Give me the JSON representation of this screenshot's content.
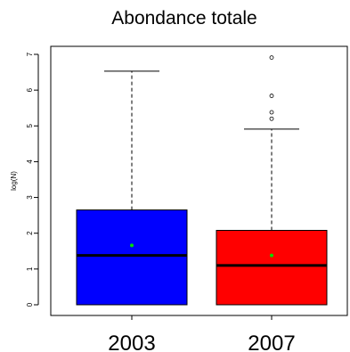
{
  "chart_data": {
    "type": "boxplot",
    "title": "Abondance totale",
    "xlabel": "",
    "ylabel": "log(N)",
    "ylim": [
      0,
      7
    ],
    "yticks": [
      "0",
      "1",
      "2",
      "3",
      "4",
      "5",
      "6",
      "7"
    ],
    "categories": [
      "2003",
      "2007"
    ],
    "boxes": [
      {
        "category": "2003",
        "color": "#0000ff",
        "min": 0,
        "q1": 0,
        "median": 1.38,
        "q3": 2.65,
        "whisker_high": 6.53,
        "mean": 1.66,
        "outliers": []
      },
      {
        "category": "2007",
        "color": "#ff0000",
        "min": 0,
        "q1": 0,
        "median": 1.1,
        "q3": 2.08,
        "whisker_high": 4.91,
        "mean": 1.38,
        "outliers": [
          5.2,
          5.38,
          5.84,
          6.91
        ]
      }
    ],
    "mean_marker_color": "#00e000",
    "grid": false,
    "legend": "none"
  }
}
